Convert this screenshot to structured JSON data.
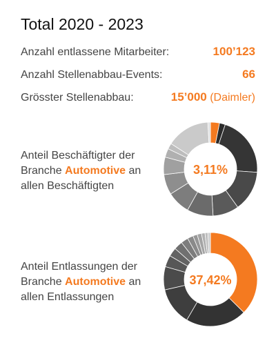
{
  "title": "Total 2020 - 2023",
  "stats": [
    {
      "label": "Anzahl entlassene Mitarbeiter:",
      "value": "100’123",
      "note": ""
    },
    {
      "label": "Anzahl Stellenabbau-Events:",
      "value": "66",
      "note": ""
    },
    {
      "label": "Grösster Stellenabbau:",
      "value": "15’000",
      "note": "(Daimler)"
    }
  ],
  "desc1": {
    "pre": "Anteil Beschäftigter der Branche",
    "highlight": "Automotive",
    "post": "an allen Beschäftigten"
  },
  "desc2": {
    "pre": "Anteil Entlassungen der Branche",
    "highlight": "Automotive",
    "post": "an allen Entlassungen"
  },
  "colors": {
    "accent": "#f47a20",
    "text": "#444444"
  },
  "chart_data": [
    {
      "type": "pie",
      "center_label": "3,11%",
      "highlight_share": 3.11,
      "slices": [
        3.11,
        2,
        21,
        14,
        9,
        9,
        8,
        7,
        6,
        3,
        2,
        15,
        0.89
      ],
      "colors": [
        "#f47a20",
        "#2b2b2b",
        "#353535",
        "#494949",
        "#5a5a5a",
        "#6b6b6b",
        "#7d7d7d",
        "#8e8e8e",
        "#a0a0a0",
        "#b0b0b0",
        "#bdbdbd",
        "#cacaca",
        "#e0e0e0"
      ]
    },
    {
      "type": "pie",
      "center_label": "37,42%",
      "highlight_share": 37.42,
      "slices": [
        37.42,
        21,
        13,
        8,
        4,
        3,
        3,
        2.5,
        2,
        1.5,
        1.5,
        1.2,
        1,
        0.88
      ],
      "colors": [
        "#f47a20",
        "#333333",
        "#3e3e3e",
        "#4b4b4b",
        "#575757",
        "#636363",
        "#707070",
        "#7d7d7d",
        "#8a8a8a",
        "#979797",
        "#a4a4a4",
        "#b1b1b1",
        "#bebebe",
        "#cbcbcb"
      ]
    }
  ]
}
